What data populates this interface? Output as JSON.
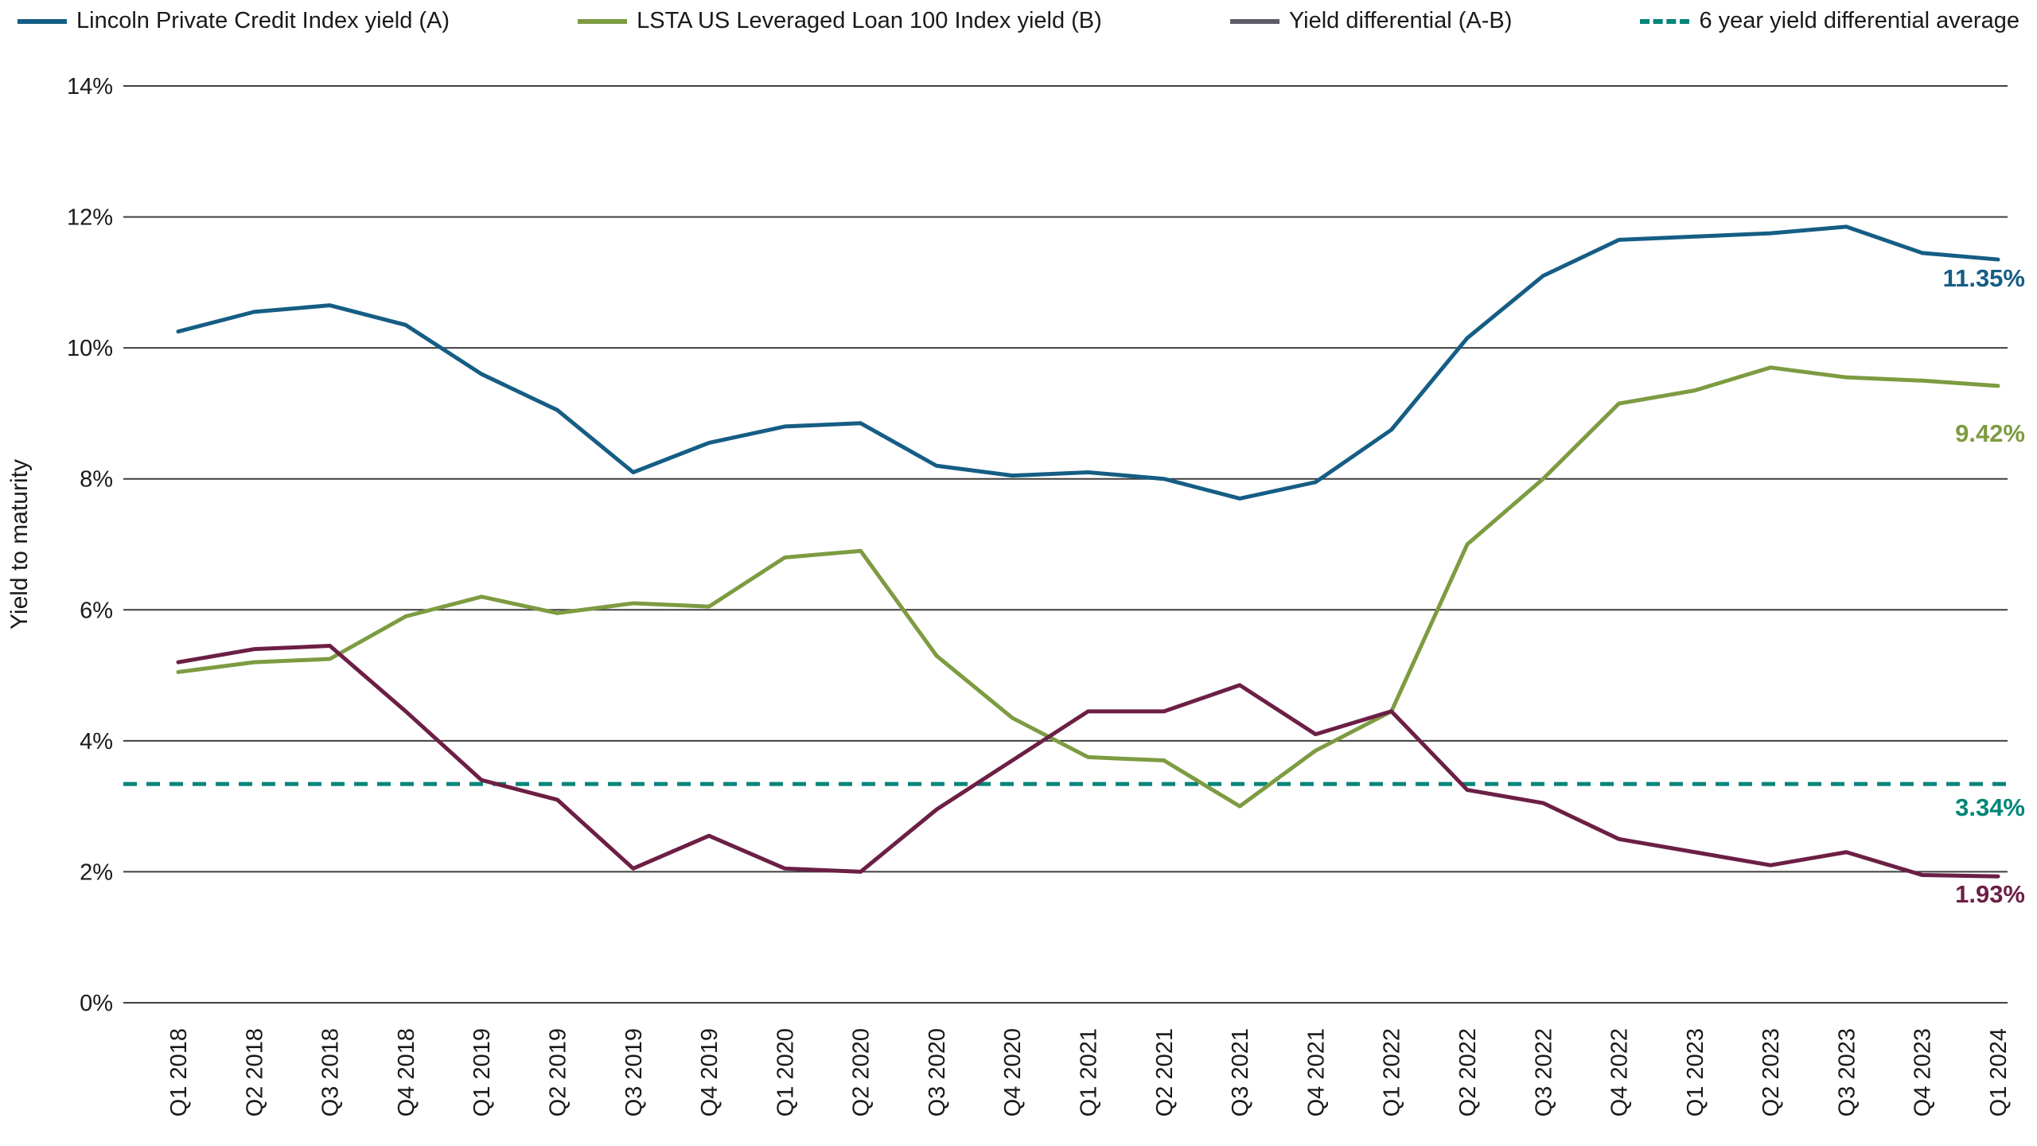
{
  "chart_data": {
    "type": "line",
    "title": "",
    "ylabel": "Yield to maturity",
    "ylim": [
      0,
      14
    ],
    "ytick_step": 2,
    "ytick_suffix": "%",
    "grid": true,
    "grid_color": "#3f3f3f",
    "text_color": "#1a1a1a",
    "background": "#ffffff",
    "legend_position": "top",
    "legend": [
      {
        "label": "Lincoln Private Credit Index yield (A)",
        "color": "#155d84",
        "style": "solid"
      },
      {
        "label": "LSTA US Leveraged Loan 100 Index yield (B)",
        "color": "#7d9b41",
        "style": "solid"
      },
      {
        "label": "Yield differential (A-B)",
        "color": "#5e5c66",
        "style": "solid"
      },
      {
        "label": "6 year yield differential average",
        "color": "#008578",
        "style": "dashed"
      }
    ],
    "categories": [
      "Q1 2018",
      "Q2 2018",
      "Q3 2018",
      "Q4 2018",
      "Q1 2019",
      "Q2 2019",
      "Q3 2019",
      "Q4 2019",
      "Q1 2020",
      "Q2 2020",
      "Q3 2020",
      "Q4 2020",
      "Q1 2021",
      "Q2 2021",
      "Q3 2021",
      "Q4 2021",
      "Q1 2022",
      "Q2 2022",
      "Q3 2022",
      "Q4 2022",
      "Q1 2023",
      "Q2 2023",
      "Q3 2023",
      "Q4 2023",
      "Q1 2024"
    ],
    "series": [
      {
        "id": "lincoln-private-credit-index",
        "name": "Lincoln Private Credit Index yield (A)",
        "color": "#155d84",
        "values": [
          10.25,
          10.55,
          10.65,
          10.35,
          9.6,
          9.05,
          8.1,
          8.55,
          8.8,
          8.85,
          8.2,
          8.05,
          8.1,
          8.0,
          7.7,
          7.95,
          8.75,
          10.15,
          11.1,
          11.65,
          11.7,
          11.75,
          11.85,
          11.45,
          11.35
        ]
      },
      {
        "id": "lsta-leveraged-loan-100-index",
        "name": "LSTA US Leveraged Loan 100 Index yield (B)",
        "color": "#7d9b41",
        "values": [
          5.05,
          5.2,
          5.25,
          5.9,
          6.2,
          5.95,
          6.1,
          6.05,
          6.8,
          6.9,
          5.3,
          4.35,
          3.75,
          3.7,
          3.0,
          3.85,
          4.45,
          7.0,
          8.0,
          9.15,
          9.35,
          9.7,
          9.55,
          9.5,
          9.42
        ]
      },
      {
        "id": "yield-differential",
        "name": "Yield differential (A-B)",
        "color": "#6c1f45",
        "values": [
          5.2,
          5.4,
          5.45,
          4.45,
          3.4,
          3.1,
          2.05,
          2.55,
          2.05,
          2.0,
          2.95,
          3.7,
          4.45,
          4.45,
          4.85,
          4.1,
          4.45,
          3.25,
          3.05,
          2.5,
          2.3,
          2.1,
          2.3,
          1.95,
          1.93
        ]
      }
    ],
    "average_line": {
      "label": "6 year yield differential average",
      "value": 3.34,
      "color": "#008578"
    },
    "annotations": [
      {
        "text": "11.35%",
        "value": 11.35,
        "color": "#155d84"
      },
      {
        "text": "9.42%",
        "value": 9.42,
        "color": "#7d9b41"
      },
      {
        "text": "3.34%",
        "value": 3.34,
        "color": "#008578"
      },
      {
        "text": "1.93%",
        "value": 1.93,
        "color": "#6c1f45"
      }
    ]
  }
}
